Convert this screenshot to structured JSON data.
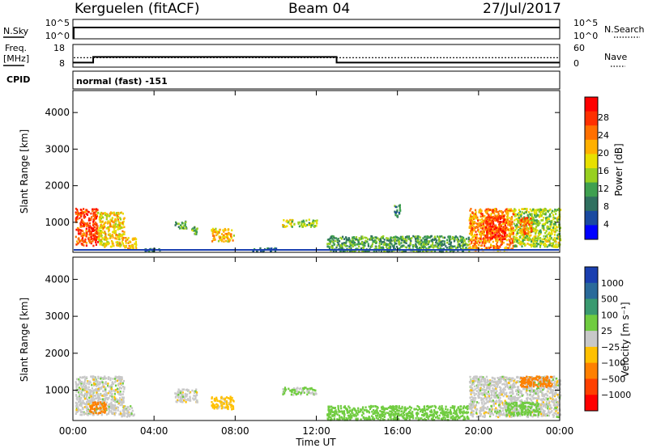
{
  "header": {
    "station": "Kerguelen (fitACF)",
    "beam": "Beam 04",
    "date": "27/Jul/2017"
  },
  "strip_panels": {
    "nsky_label": "N.Sky",
    "nsky_ticks": [
      "10^5",
      "10^0"
    ],
    "nsearch_label": "N.Search",
    "nsearch_ticks": [
      "10^5",
      "10^0"
    ],
    "freq_label_1": "Freq.",
    "freq_label_2": "[MHz]",
    "freq_ticks": [
      "18",
      "8"
    ],
    "nave_label": "Nave",
    "nave_ticks": [
      "60",
      "0"
    ],
    "cpid_label": "CPID",
    "cpid_value": "normal (fast) -151"
  },
  "axes": {
    "ylabel": "Slant Range [km]",
    "yticks": [
      "4000",
      "3000",
      "2000",
      "1000"
    ],
    "xticks": [
      "00:00",
      "04:00",
      "08:00",
      "12:00",
      "16:00",
      "20:00",
      "00:00"
    ],
    "xlabel": "Time UT"
  },
  "power_colorbar": {
    "label": "Power [dB]",
    "ticks": [
      "28",
      "24",
      "20",
      "16",
      "12",
      "8",
      "4"
    ],
    "colors": [
      "#ff0000",
      "#ff3000",
      "#ff7000",
      "#ffb000",
      "#e8e000",
      "#98d020",
      "#3fa050",
      "#307060",
      "#1a4aa0",
      "#0000ff"
    ]
  },
  "velocity_colorbar": {
    "label": "Velocity [m s⁻¹]",
    "ticks": [
      "1000",
      "500",
      "100",
      "25",
      "−25",
      "−100",
      "−500",
      "−1000"
    ],
    "colors": [
      "#1a3fb0",
      "#2a6a9a",
      "#3a9a70",
      "#70cc40",
      "#c8c8c8",
      "#ffc000",
      "#ff8000",
      "#ff4000",
      "#ff0000"
    ]
  },
  "chart_data": {
    "type": "heatmap",
    "x_range_hours": [
      0,
      24
    ],
    "y_range_km": [
      180,
      4600
    ],
    "frequency_mhz": [
      {
        "start_h": 0.0,
        "end_h": 1.0,
        "value": 10.0
      },
      {
        "start_h": 1.0,
        "end_h": 13.0,
        "value": 12.5
      },
      {
        "start_h": 13.0,
        "end_h": 24.0,
        "value": 10.0
      }
    ],
    "nave_level": 25,
    "power_clusters": [
      {
        "t0": 0.1,
        "t1": 1.2,
        "r0": 380,
        "r1": 1400,
        "level": 26
      },
      {
        "t0": 1.2,
        "t1": 2.5,
        "r0": 350,
        "r1": 1300,
        "level": 18
      },
      {
        "t0": 2.5,
        "t1": 3.1,
        "r0": 300,
        "r1": 600,
        "level": 20
      },
      {
        "t0": 3.5,
        "t1": 4.3,
        "r0": 230,
        "r1": 300,
        "level": 6
      },
      {
        "t0": 5.0,
        "t1": 5.6,
        "r0": 850,
        "r1": 1050,
        "level": 9
      },
      {
        "t0": 5.8,
        "t1": 6.1,
        "r0": 700,
        "r1": 900,
        "level": 12
      },
      {
        "t0": 6.8,
        "t1": 7.9,
        "r0": 500,
        "r1": 850,
        "level": 19
      },
      {
        "t0": 8.8,
        "t1": 10.0,
        "r0": 220,
        "r1": 320,
        "level": 7
      },
      {
        "t0": 10.3,
        "t1": 10.9,
        "r0": 900,
        "r1": 1100,
        "level": 15
      },
      {
        "t0": 11.0,
        "t1": 12.0,
        "r0": 900,
        "r1": 1100,
        "level": 13
      },
      {
        "t0": 12.5,
        "t1": 19.5,
        "r0": 220,
        "r1": 650,
        "level": 10
      },
      {
        "t0": 15.8,
        "t1": 16.1,
        "r0": 1150,
        "r1": 1500,
        "level": 8
      },
      {
        "t0": 19.5,
        "t1": 21.7,
        "r0": 250,
        "r1": 1400,
        "level": 22
      },
      {
        "t0": 20.3,
        "t1": 21.3,
        "r0": 550,
        "r1": 1200,
        "level": 27
      },
      {
        "t0": 21.7,
        "t1": 24.0,
        "r0": 350,
        "r1": 1400,
        "level": 14
      },
      {
        "t0": 22.0,
        "t1": 22.6,
        "r0": 700,
        "r1": 1150,
        "level": 24
      }
    ],
    "velocity_clusters": [
      {
        "t0": 0.1,
        "t1": 2.5,
        "r0": 350,
        "r1": 1400,
        "value": 0
      },
      {
        "t0": 0.8,
        "t1": 1.6,
        "r0": 400,
        "r1": 700,
        "value": -200
      },
      {
        "t0": 2.3,
        "t1": 3.0,
        "r0": 300,
        "r1": 600,
        "value": 0
      },
      {
        "t0": 5.0,
        "t1": 6.1,
        "r0": 700,
        "r1": 1050,
        "value": 0
      },
      {
        "t0": 6.8,
        "t1": 7.9,
        "r0": 500,
        "r1": 850,
        "value": -50
      },
      {
        "t0": 10.3,
        "t1": 12.0,
        "r0": 900,
        "r1": 1100,
        "value": 40
      },
      {
        "t0": 12.5,
        "t1": 19.5,
        "r0": 220,
        "r1": 600,
        "value": 60
      },
      {
        "t0": 19.5,
        "t1": 24.0,
        "r0": 300,
        "r1": 1400,
        "value": 0
      },
      {
        "t0": 21.3,
        "t1": 23.0,
        "r0": 350,
        "r1": 700,
        "value": 70
      },
      {
        "t0": 22.0,
        "t1": 23.6,
        "r0": 1100,
        "r1": 1400,
        "value": -150
      }
    ]
  }
}
